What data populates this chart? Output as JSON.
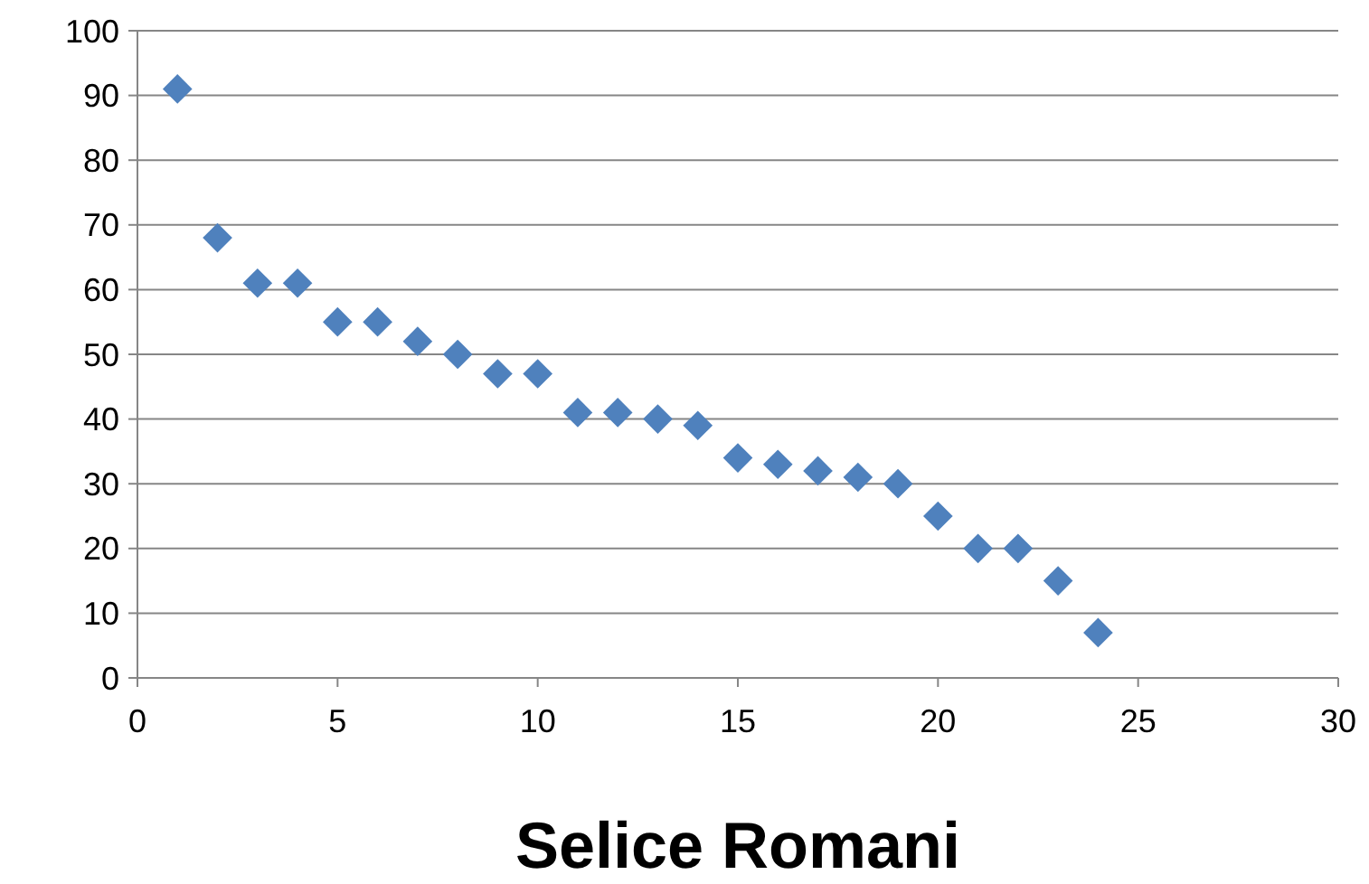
{
  "chart_data": {
    "type": "scatter",
    "xlabel": "Selice Romani",
    "marker": "diamond",
    "grid": "y",
    "x": [
      1,
      2,
      3,
      4,
      5,
      6,
      7,
      8,
      9,
      10,
      11,
      12,
      13,
      14,
      15,
      16,
      17,
      18,
      19,
      20,
      21,
      22,
      23,
      24
    ],
    "series": [
      {
        "color": "#4f81bd",
        "values": [
          91,
          68,
          61,
          61,
          55,
          55,
          52,
          50,
          47,
          47,
          41,
          41,
          40,
          39,
          34,
          33,
          32,
          31,
          30,
          25,
          20,
          20,
          15,
          7
        ]
      }
    ],
    "xlim": [
      0,
      30
    ],
    "xticks": [
      0,
      5,
      10,
      15,
      20,
      25,
      30
    ],
    "ylim": [
      0,
      100
    ],
    "yticks": [
      0,
      10,
      20,
      30,
      40,
      50,
      60,
      70,
      80,
      90,
      100
    ]
  }
}
